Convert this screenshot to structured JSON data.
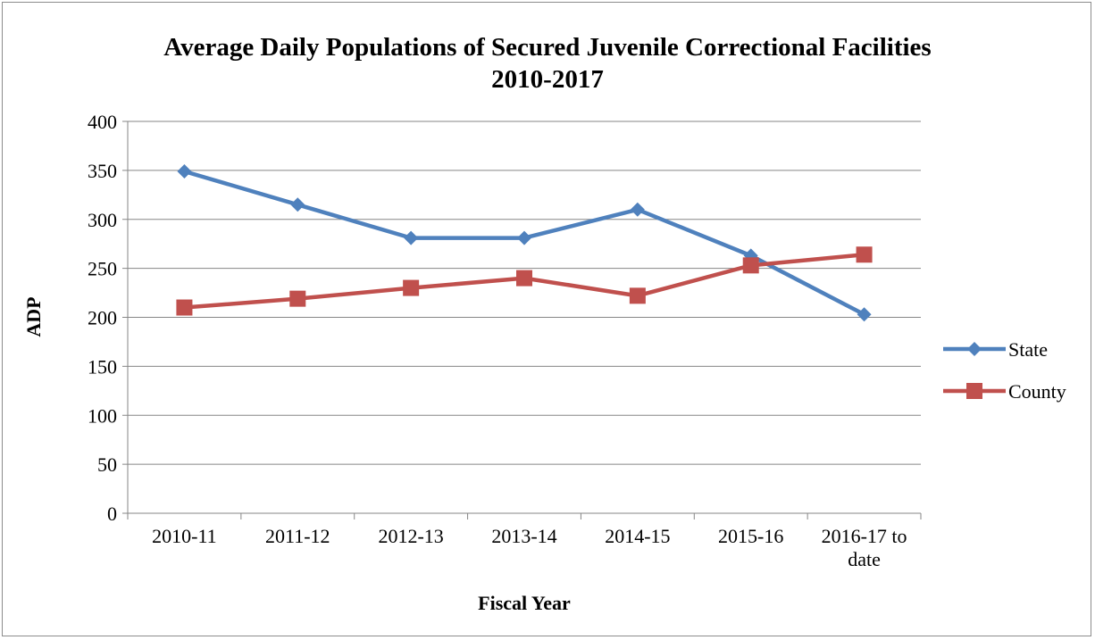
{
  "chart_data": {
    "type": "line",
    "title": "Average Daily Populations of Secured Juvenile Correctional Facilities",
    "subtitle": "2010-2017",
    "xlabel": "Fiscal Year",
    "ylabel": "ADP",
    "categories": [
      "2010-11",
      "2011-12",
      "2012-13",
      "2013-14",
      "2014-15",
      "2015-16",
      "2016-17 to date"
    ],
    "category_lines": [
      [
        "2010-11"
      ],
      [
        "2011-12"
      ],
      [
        "2012-13"
      ],
      [
        "2013-14"
      ],
      [
        "2014-15"
      ],
      [
        "2015-16"
      ],
      [
        "2016-17 to",
        "date"
      ]
    ],
    "ylim": [
      0,
      400
    ],
    "yticks": [
      0,
      50,
      100,
      150,
      200,
      250,
      300,
      350,
      400
    ],
    "grid": true,
    "legend_position": "right",
    "series": [
      {
        "name": "State",
        "values": [
          349,
          315,
          281,
          281,
          310,
          263,
          203
        ],
        "color": "#4F81BD",
        "marker": "diamond"
      },
      {
        "name": "County",
        "values": [
          210,
          219,
          230,
          240,
          222,
          253,
          264
        ],
        "color": "#C0504D",
        "marker": "square"
      }
    ]
  }
}
